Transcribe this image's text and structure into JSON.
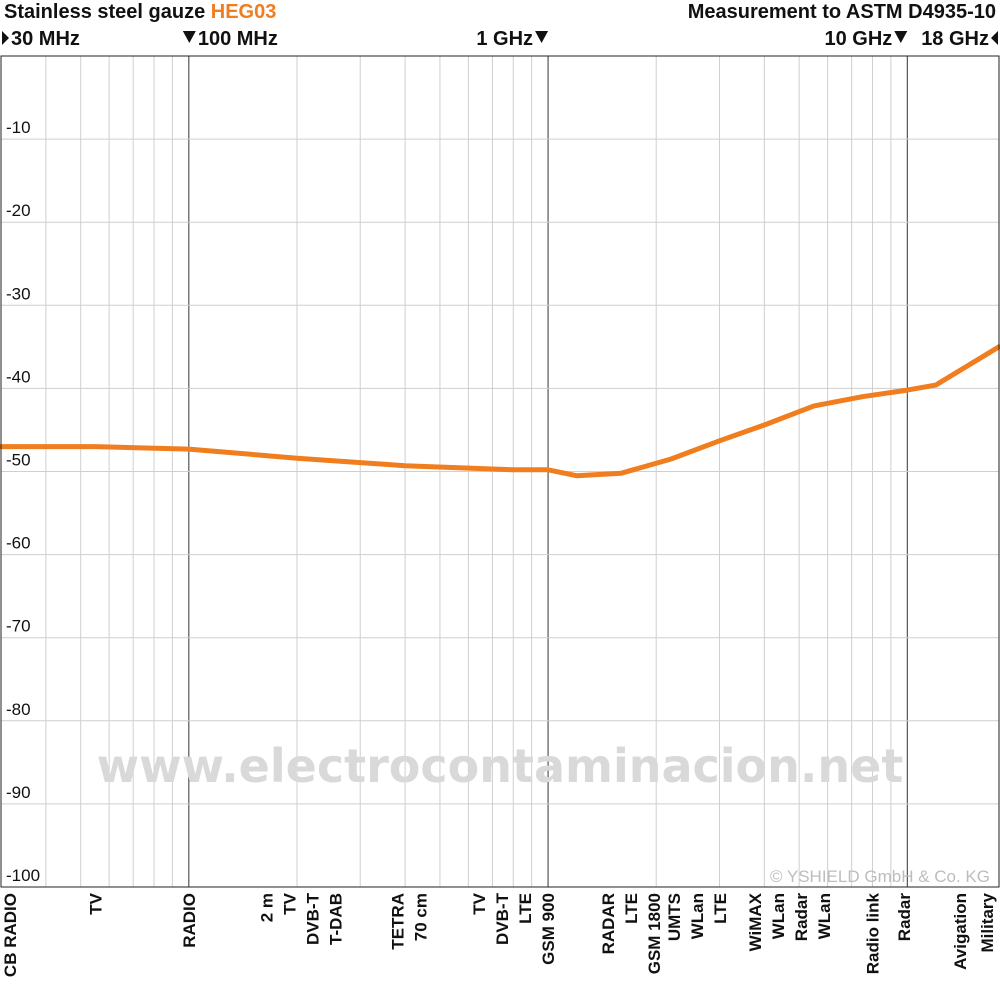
{
  "header": {
    "title_prefix": "Stainless steel gauze",
    "title_product": "HEG03",
    "standard": "Measurement to ASTM D4935-10",
    "product_color": "#f07d1e"
  },
  "frequency_markers": [
    {
      "label": "30 MHz",
      "freq_mhz": 30,
      "icon": "triangle-right-icon"
    },
    {
      "label": "100 MHz",
      "freq_mhz": 100,
      "icon": "triangle-down-icon"
    },
    {
      "label": "1 GHz",
      "freq_mhz": 1000,
      "icon": "triangle-down-icon"
    },
    {
      "label": "10 GHz",
      "freq_mhz": 10000,
      "icon": "triangle-down-icon"
    },
    {
      "label": "18 GHz",
      "freq_mhz": 18000,
      "icon": "triangle-left-icon"
    }
  ],
  "watermark": "www.electrocontaminacion.net",
  "copyright": "© YSHIELD GmbH & Co. KG",
  "band_labels": [
    {
      "lines": [
        "CB RADIO"
      ],
      "freq_mhz": 30
    },
    {
      "lines": [
        "TV"
      ],
      "freq_mhz": 55
    },
    {
      "lines": [
        "RADIO"
      ],
      "freq_mhz": 100
    },
    {
      "lines": [
        "2 m",
        "TV",
        "DVB-T",
        "T-DAB"
      ],
      "freq_mhz": 205
    },
    {
      "lines": [
        "TETRA",
        "70 cm"
      ],
      "freq_mhz": 410
    },
    {
      "lines": [
        "TV",
        "DVB-T",
        "LTE",
        "GSM 900"
      ],
      "freq_mhz": 800
    },
    {
      "lines": [
        "RADAR",
        "LTE",
        "GSM 1800"
      ],
      "freq_mhz": 1700
    },
    {
      "lines": [
        "UMTS",
        "WLan",
        "LTE"
      ],
      "freq_mhz": 2600
    },
    {
      "lines": [
        "WiMAX",
        "WLan",
        "Radar",
        "WLan"
      ],
      "freq_mhz": 4700
    },
    {
      "lines": [
        "Radio link"
      ],
      "freq_mhz": 8000
    },
    {
      "lines": [
        "Radar"
      ],
      "freq_mhz": 9800
    },
    {
      "lines": [
        "Avigation"
      ],
      "freq_mhz": 14000
    },
    {
      "lines": [
        "Military"
      ],
      "freq_mhz": 17000
    }
  ],
  "chart_data": {
    "type": "line",
    "title": "Stainless steel gauze HEG03",
    "subtitle": "Measurement to ASTM D4935-10",
    "xlabel": "",
    "ylabel": "",
    "x_scale": "log",
    "xlim": [
      30,
      18000
    ],
    "ylim": [
      -100,
      0
    ],
    "yticks": [
      -10,
      -20,
      -30,
      -40,
      -50,
      -60,
      -70,
      -80,
      -90,
      -100
    ],
    "ytick_labels": [
      "-10",
      "-20",
      "-30",
      "-40",
      "-50",
      "-60",
      "-70",
      "-80",
      "-90",
      "-100"
    ],
    "grid": true,
    "series": [
      {
        "color": "#f07d1e",
        "x": [
          30,
          55,
          100,
          200,
          400,
          800,
          1000,
          1200,
          1600,
          2200,
          3000,
          4000,
          5500,
          7500,
          10000,
          12000,
          18000
        ],
        "y": [
          -47,
          -47,
          -47.3,
          -48.4,
          -49.3,
          -49.8,
          -49.8,
          -50.5,
          -50.2,
          -48.5,
          -46.3,
          -44.4,
          -42.1,
          -41,
          -40.2,
          -39.6,
          -35
        ]
      }
    ]
  }
}
